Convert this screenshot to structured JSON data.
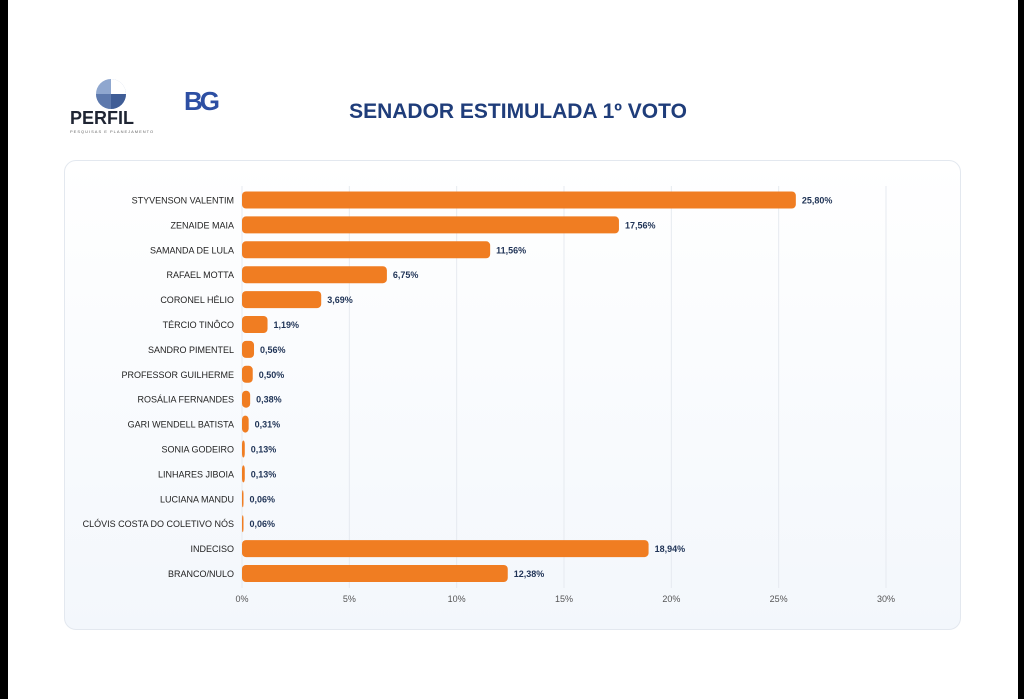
{
  "logos": {
    "perfil": {
      "name": "PERFIL",
      "tagline": "PESQUISAS E PLANEJAMENTO"
    },
    "bg": {
      "name": "BG"
    }
  },
  "colors": {
    "bar": "#f07d22",
    "title": "#1f3d7a",
    "label": "#222222",
    "value": "#1f3356"
  },
  "chart_data": {
    "type": "bar",
    "orientation": "horizontal",
    "title": "SENADOR ESTIMULADA 1º VOTO",
    "categories": [
      "STYVENSON VALENTIM",
      "ZENAIDE MAIA",
      "SAMANDA DE LULA",
      "RAFAEL MOTTA",
      "CORONEL HÉLIO",
      "TÉRCIO TINÔCO",
      "SANDRO PIMENTEL",
      "PROFESSOR GUILHERME",
      "ROSÁLIA FERNANDES",
      "GARI WENDELL BATISTA",
      "SONIA GODEIRO",
      "LINHARES JIBOIA",
      "LUCIANA MANDU",
      "CLÓVIS COSTA DO COLETIVO NÓS",
      "INDECISO",
      "BRANCO/NULO"
    ],
    "values": [
      25.8,
      17.56,
      11.56,
      6.75,
      3.69,
      1.19,
      0.56,
      0.5,
      0.38,
      0.31,
      0.13,
      0.13,
      0.06,
      0.06,
      18.94,
      12.38
    ],
    "value_labels": [
      "25,80%",
      "17,56%",
      "11,56%",
      "6,75%",
      "3,69%",
      "1,19%",
      "0,56%",
      "0,50%",
      "0,38%",
      "0,31%",
      "0,13%",
      "0,13%",
      "0,06%",
      "0,06%",
      "18,94%",
      "12,38%"
    ],
    "xlim": [
      0,
      30
    ],
    "xticks": [
      0,
      5,
      10,
      15,
      20,
      25,
      30
    ],
    "xtick_labels": [
      "0%",
      "5%",
      "10%",
      "15%",
      "20%",
      "25%",
      "30%"
    ],
    "grid": true,
    "legend": false
  }
}
